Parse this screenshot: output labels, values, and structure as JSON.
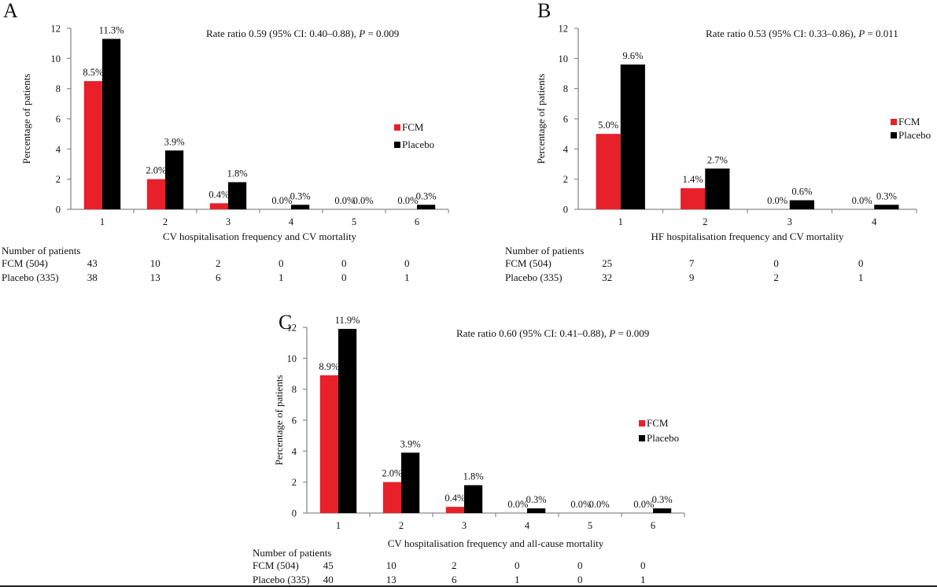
{
  "colors": {
    "fcm": "#e8202a",
    "placebo": "#000000",
    "axis": "#8a8a8a"
  },
  "chart_data": [
    {
      "type": "bar",
      "panel": "A",
      "annotation_prefix": "Rate ratio 0.59 (95% CI: 0.40–0.88), ",
      "annotation_p": "P",
      "annotation_suffix": " = 0.009",
      "xlabel": "CV hospitalisation frequency and CV mortality",
      "ylabel": "Percentage of patients",
      "ylim": [
        0,
        12
      ],
      "yticks": [
        "0",
        "2",
        "4",
        "6",
        "8",
        "10",
        "12"
      ],
      "categories": [
        "1",
        "2",
        "3",
        "4",
        "5",
        "6"
      ],
      "series": [
        {
          "name": "FCM",
          "values": [
            8.5,
            2.0,
            0.4,
            0.0,
            0.0,
            0.0
          ],
          "labels": [
            "8.5%",
            "2.0%",
            "0.4%",
            "0.0%",
            "0.0%",
            "0.0%"
          ]
        },
        {
          "name": "Placebo",
          "values": [
            11.3,
            3.9,
            1.8,
            0.3,
            0.0,
            0.3
          ],
          "labels": [
            "11.3%",
            "3.9%",
            "1.8%",
            "0.3%",
            "0.0%",
            "0.3%"
          ]
        }
      ],
      "legend": [
        "FCM",
        "Placebo"
      ],
      "table": {
        "title": "Number of patients",
        "rows": [
          {
            "label": "FCM (504)",
            "values": [
              "43",
              "10",
              "2",
              "0",
              "0",
              "0"
            ]
          },
          {
            "label": "Placebo (335)",
            "values": [
              "38",
              "13",
              "6",
              "1",
              "0",
              "1"
            ]
          }
        ]
      }
    },
    {
      "type": "bar",
      "panel": "B",
      "annotation_prefix": "Rate ratio 0.53 (95% CI: 0.33–0.86), ",
      "annotation_p": "P",
      "annotation_suffix": " = 0.011",
      "xlabel": "HF hospitalisation frequency and CV mortality",
      "ylabel": "Percentage of patients",
      "ylim": [
        0,
        12
      ],
      "yticks": [
        "0",
        "2",
        "4",
        "6",
        "8",
        "10",
        "12"
      ],
      "categories": [
        "1",
        "2",
        "3",
        "4"
      ],
      "series": [
        {
          "name": "FCM",
          "values": [
            5.0,
            1.4,
            0.0,
            0.0
          ],
          "labels": [
            "5.0%",
            "1.4%",
            "0.0%",
            "0.0%"
          ]
        },
        {
          "name": "Placebo",
          "values": [
            9.6,
            2.7,
            0.6,
            0.3
          ],
          "labels": [
            "9.6%",
            "2.7%",
            "0.6%",
            "0.3%"
          ]
        }
      ],
      "legend": [
        "FCM",
        "Placebo"
      ],
      "table": {
        "title": "Number of patients",
        "rows": [
          {
            "label": "FCM (504)",
            "values": [
              "25",
              "7",
              "0",
              "0"
            ]
          },
          {
            "label": "Placebo (335)",
            "values": [
              "32",
              "9",
              "2",
              "1"
            ]
          }
        ]
      }
    },
    {
      "type": "bar",
      "panel": "C",
      "annotation_prefix": "Rate ratio 0.60 (95% CI: 0.41–0.88), ",
      "annotation_p": "P",
      "annotation_suffix": " = 0.009",
      "xlabel": "CV hospitalisation frequency and all-cause mortality",
      "ylabel": "Percentage of patients",
      "ylim": [
        0,
        12
      ],
      "yticks": [
        "0",
        "2",
        "4",
        "6",
        "8",
        "10",
        "12"
      ],
      "categories": [
        "1",
        "2",
        "3",
        "4",
        "5",
        "6"
      ],
      "series": [
        {
          "name": "FCM",
          "values": [
            8.9,
            2.0,
            0.4,
            0.0,
            0.0,
            0.0
          ],
          "labels": [
            "8.9%",
            "2.0%",
            "0.4%",
            "0.0%",
            "0.0%",
            "0.0%"
          ]
        },
        {
          "name": "Placebo",
          "values": [
            11.9,
            3.9,
            1.8,
            0.3,
            0.0,
            0.3
          ],
          "labels": [
            "11.9%",
            "3.9%",
            "1.8%",
            "0.3%",
            "0.0%",
            "0.3%"
          ]
        }
      ],
      "legend": [
        "FCM",
        "Placebo"
      ],
      "table": {
        "title": "Number of patients",
        "rows": [
          {
            "label": "FCM (504)",
            "values": [
              "45",
              "10",
              "2",
              "0",
              "0",
              "0"
            ]
          },
          {
            "label": "Placebo (335)",
            "values": [
              "40",
              "13",
              "6",
              "1",
              "0",
              "1"
            ]
          }
        ]
      }
    }
  ]
}
